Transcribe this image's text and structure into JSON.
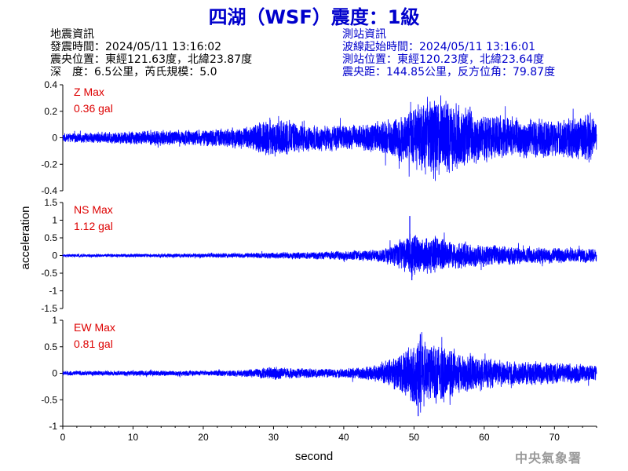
{
  "title": "四湖（WSF）震度：1級",
  "event_info": {
    "heading": "地震資訊",
    "origin_time": "發震時間：2024/05/11 13:16:02",
    "epicenter": "震央位置：東經121.63度，北緯23.87度",
    "depth_magnitude": "深　度：6.5公里，芮氏規模：5.0"
  },
  "station_info": {
    "heading": "測站資訊",
    "wave_start": "波線起始時間：2024/05/11 13:16:01",
    "location": "測站位置：東經120.23度，北緯23.64度",
    "distance": "震央距：144.85公里，反方位角：79.87度"
  },
  "watermark": "中央氣象署",
  "colors": {
    "trace": "#0000ff",
    "max_label": "#dd0000",
    "title": "#0000cc"
  },
  "chart_data": {
    "type": "line",
    "xlabel": "second",
    "ylabel": "acceleration",
    "xlim": [
      0,
      76
    ],
    "x_ticks": [
      0,
      10,
      20,
      30,
      40,
      50,
      60,
      70
    ],
    "grid": false,
    "panels": [
      {
        "component": "Z",
        "max_label": "Z Max",
        "max_value": "0.36 gal",
        "ylim": [
          -0.4,
          0.4
        ],
        "y_ticks": [
          -0.4,
          -0.2,
          0,
          0.2,
          0.4
        ],
        "y_tick_labels": [
          "-0.4",
          "-0.2",
          "0",
          "0.2",
          "0.4"
        ],
        "envelope": [
          [
            0,
            0.03
          ],
          [
            5,
            0.04
          ],
          [
            10,
            0.05
          ],
          [
            15,
            0.06
          ],
          [
            20,
            0.06
          ],
          [
            25,
            0.08
          ],
          [
            27,
            0.1
          ],
          [
            29,
            0.15
          ],
          [
            31,
            0.14
          ],
          [
            33,
            0.12
          ],
          [
            35,
            0.1
          ],
          [
            38,
            0.1
          ],
          [
            40,
            0.09
          ],
          [
            43,
            0.1
          ],
          [
            46,
            0.14
          ],
          [
            48,
            0.17
          ],
          [
            50,
            0.22
          ],
          [
            51,
            0.28
          ],
          [
            52,
            0.3
          ],
          [
            53,
            0.3
          ],
          [
            54,
            0.3
          ],
          [
            55,
            0.27
          ],
          [
            57,
            0.24
          ],
          [
            60,
            0.18
          ],
          [
            63,
            0.16
          ],
          [
            65,
            0.16
          ],
          [
            67,
            0.14
          ],
          [
            70,
            0.14
          ],
          [
            73,
            0.17
          ],
          [
            75,
            0.2
          ],
          [
            76,
            0.12
          ]
        ]
      },
      {
        "component": "NS",
        "max_label": "NS Max",
        "max_value": "1.12 gal",
        "ylim": [
          -1.5,
          1.5
        ],
        "y_ticks": [
          -1.5,
          -1,
          -0.5,
          0,
          0.5,
          1,
          1.5
        ],
        "y_tick_labels": [
          "-1.5",
          "-1",
          "-0.5",
          "0",
          "0.5",
          "1",
          "1.5"
        ],
        "envelope": [
          [
            0,
            0.04
          ],
          [
            10,
            0.05
          ],
          [
            20,
            0.06
          ],
          [
            28,
            0.07
          ],
          [
            30,
            0.09
          ],
          [
            35,
            0.1
          ],
          [
            40,
            0.13
          ],
          [
            45,
            0.17
          ],
          [
            47,
            0.3
          ],
          [
            48,
            0.4
          ],
          [
            49,
            0.55
          ],
          [
            50,
            0.62
          ],
          [
            51,
            0.45
          ],
          [
            52,
            0.55
          ],
          [
            53,
            0.5
          ],
          [
            55,
            0.4
          ],
          [
            57,
            0.38
          ],
          [
            60,
            0.3
          ],
          [
            63,
            0.27
          ],
          [
            67,
            0.22
          ],
          [
            70,
            0.22
          ],
          [
            73,
            0.2
          ],
          [
            76,
            0.18
          ]
        ],
        "spikes": [
          [
            49.4,
            1.12
          ],
          [
            49.7,
            -0.7
          ]
        ]
      },
      {
        "component": "EW",
        "max_label": "EW Max",
        "max_value": "0.81 gal",
        "ylim": [
          -1,
          1
        ],
        "y_ticks": [
          -1,
          -0.5,
          0,
          0.5,
          1
        ],
        "y_tick_labels": [
          "-1",
          "-0.5",
          "0",
          "0.5",
          "1"
        ],
        "envelope": [
          [
            0,
            0.04
          ],
          [
            10,
            0.05
          ],
          [
            20,
            0.05
          ],
          [
            25,
            0.06
          ],
          [
            28,
            0.09
          ],
          [
            30,
            0.13
          ],
          [
            32,
            0.1
          ],
          [
            35,
            0.09
          ],
          [
            40,
            0.09
          ],
          [
            43,
            0.12
          ],
          [
            45,
            0.17
          ],
          [
            47,
            0.3
          ],
          [
            49,
            0.45
          ],
          [
            50,
            0.6
          ],
          [
            51,
            0.7
          ],
          [
            52,
            0.6
          ],
          [
            53,
            0.55
          ],
          [
            54,
            0.55
          ],
          [
            55,
            0.45
          ],
          [
            57,
            0.4
          ],
          [
            60,
            0.3
          ],
          [
            63,
            0.23
          ],
          [
            66,
            0.22
          ],
          [
            70,
            0.2
          ],
          [
            73,
            0.18
          ],
          [
            76,
            0.15
          ]
        ],
        "spikes": [
          [
            50.6,
            -0.81
          ],
          [
            50.9,
            0.74
          ]
        ]
      }
    ]
  }
}
